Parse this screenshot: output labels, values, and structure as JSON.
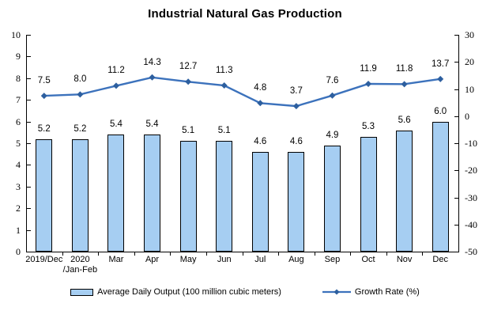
{
  "chart_data": {
    "type": "combo",
    "title": "Industrial Natural Gas Production",
    "categories": [
      "2019/Dec",
      "2020\n/Jan-Feb",
      "Mar",
      "Apr",
      "May",
      "Jun",
      "Jul",
      "Aug",
      "Sep",
      "Oct",
      "Nov",
      "Dec"
    ],
    "series": [
      {
        "name": "Average Daily Output (100 million cubic meters)",
        "type": "bar",
        "axis": "left",
        "values": [
          5.2,
          5.2,
          5.4,
          5.4,
          5.1,
          5.1,
          4.6,
          4.6,
          4.9,
          5.3,
          5.6,
          6.0
        ]
      },
      {
        "name": "Growth Rate (%)",
        "type": "line",
        "axis": "right",
        "values": [
          7.5,
          8.0,
          11.2,
          14.3,
          12.7,
          11.3,
          4.8,
          3.7,
          7.6,
          11.9,
          11.8,
          13.7
        ]
      }
    ],
    "left_axis": {
      "min": 0,
      "max": 10,
      "step": 1
    },
    "right_axis": {
      "min": -50,
      "max": 30,
      "step": 10
    },
    "grid": false,
    "legend_position": "bottom",
    "data_labels": true
  },
  "colors": {
    "bar_fill": "#A6CEF2",
    "bar_border": "#000000",
    "line": "#3C72BC",
    "marker": "#2D5F9F",
    "axis": "#000000",
    "text": "#000000"
  }
}
